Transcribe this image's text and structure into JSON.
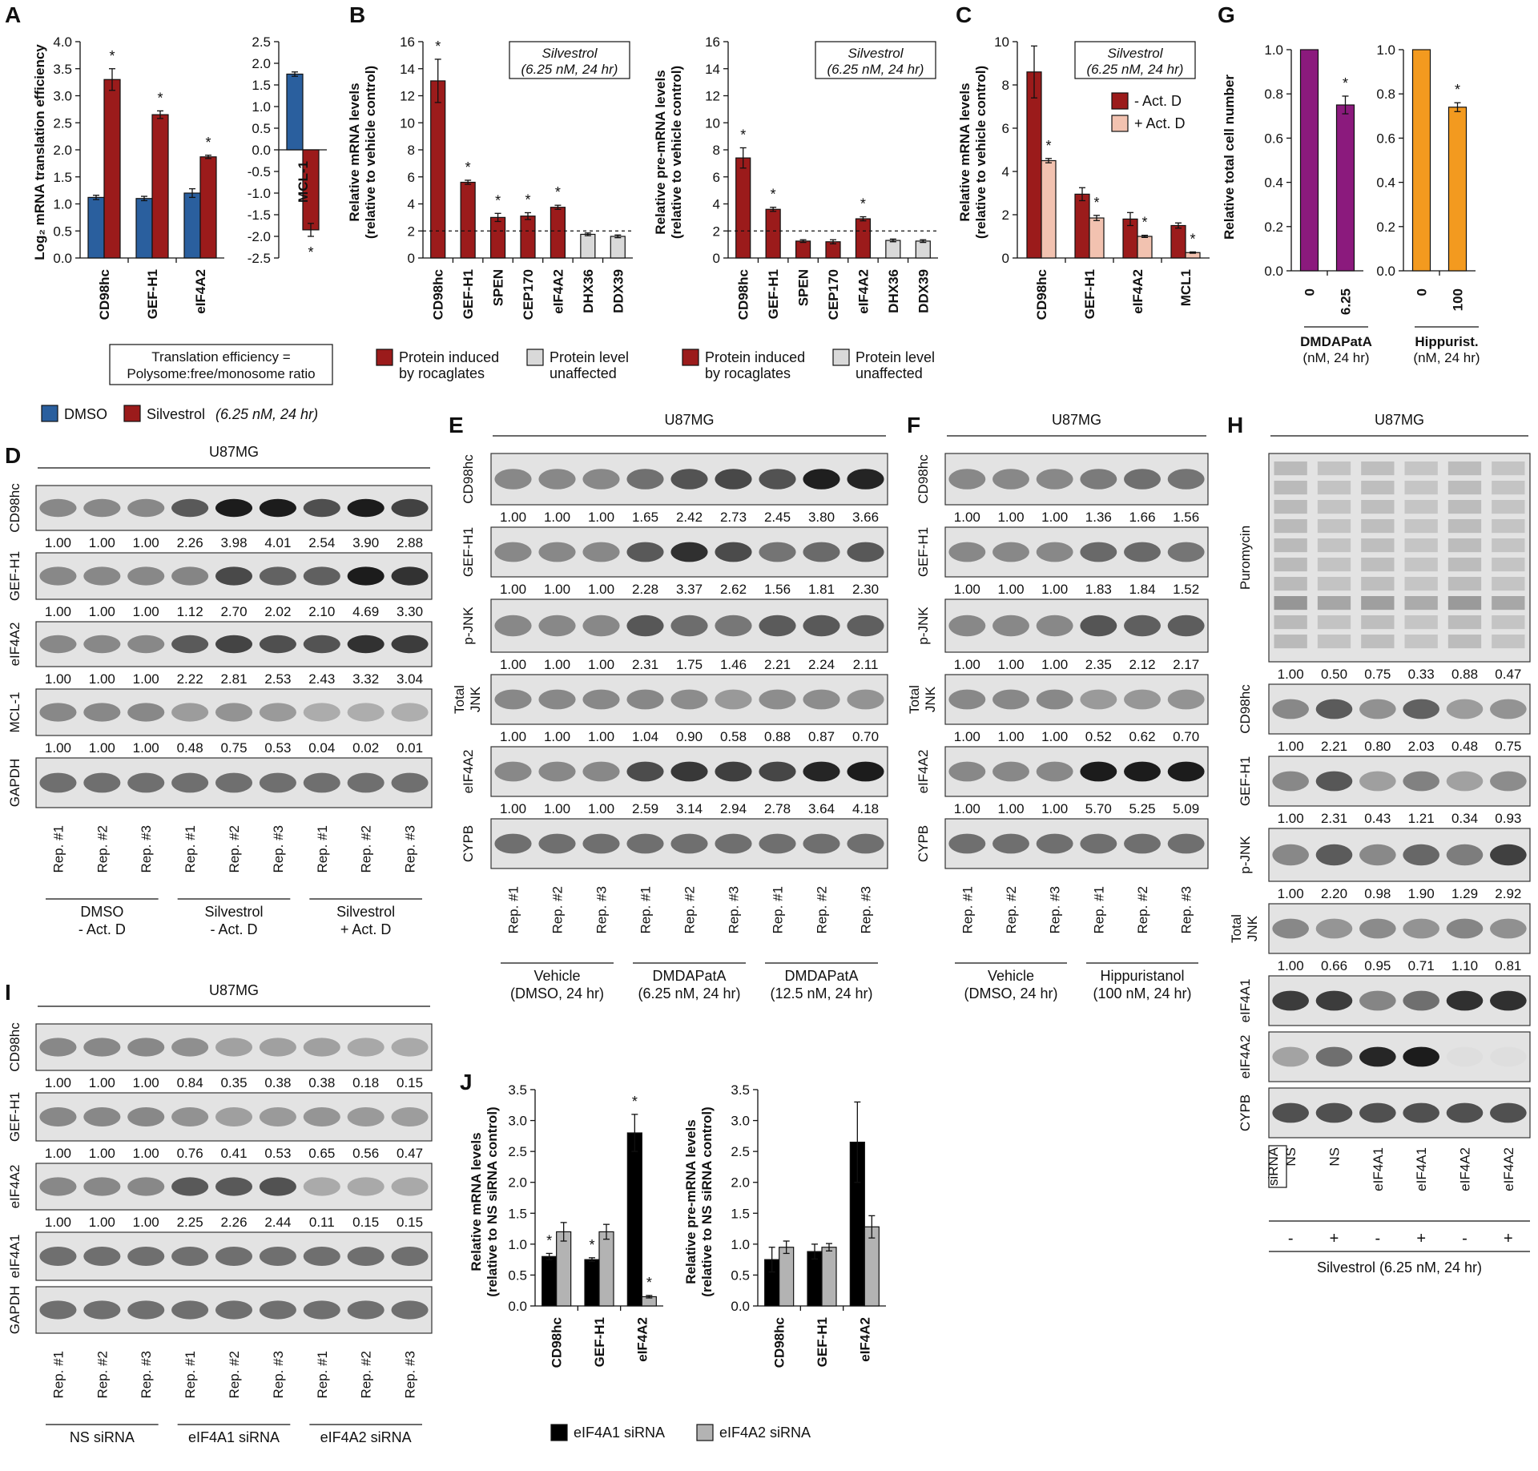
{
  "panels": {
    "A": "A",
    "B": "B",
    "C": "C",
    "D": "D",
    "E": "E",
    "F": "F",
    "G": "G",
    "H": "H",
    "I": "I",
    "J": "J"
  },
  "common": {
    "star": "*",
    "reps": [
      "Rep. #1",
      "Rep. #2",
      "Rep. #3",
      "Rep. #1",
      "Rep. #2",
      "Rep. #3",
      "Rep. #1",
      "Rep. #2",
      "Rep. #3"
    ],
    "cell_line": "U87MG",
    "silvestrol_box": [
      "Silvestrol",
      "(6.25 nM, 24 hr)"
    ],
    "legend_induced": [
      "Protein induced",
      "by rocaglates"
    ],
    "legend_unaffected": [
      "Protein level",
      "unaffected"
    ]
  },
  "legend_A": {
    "dmso": "DMSO",
    "silvestrol": "Silvestrol",
    "silvestrol_cond": "(6.25 nM, 24 hr)",
    "note": [
      "Translation efficiency =",
      "Polysome:free/monosome ratio"
    ]
  },
  "colors": {
    "dmso": "#2a5f9e",
    "silvestrol": "#9b1b1b",
    "minus_actd": "#9b1b1b",
    "plus_actd": "#f2c2b0",
    "unaffected": "#d9d9d9",
    "dmdapata": "#8b1a7d",
    "hippurist": "#f39a1f",
    "sirna1": "#000000",
    "sirna2": "#b3b3b3"
  },
  "chart_data": [
    {
      "panel": "A",
      "type": "bar",
      "ylabel": "Log₂ mRNA translation efficiency",
      "ylim": [
        0,
        4.0
      ],
      "yticks": [
        "0.0",
        "0.5",
        "1.0",
        "1.5",
        "2.0",
        "2.5",
        "3.0",
        "3.5",
        "4.0"
      ],
      "categories": [
        "CD98hc",
        "GEF-H1",
        "eIF4A2"
      ],
      "series": [
        {
          "name": "DMSO",
          "values": [
            1.12,
            1.1,
            1.2
          ]
        },
        {
          "name": "Silvestrol",
          "values": [
            3.3,
            2.65,
            1.87
          ]
        }
      ]
    },
    {
      "panel": "A",
      "type": "bar",
      "ylim": [
        -2.5,
        2.5
      ],
      "yticks": [
        "-2.5",
        "-2.0",
        "-1.5",
        "-1.0",
        "-0.5",
        "0.0",
        "0.5",
        "1.0",
        "1.5",
        "2.0",
        "2.5"
      ],
      "categories": [
        "MCL-1"
      ],
      "series": [
        {
          "name": "DMSO",
          "values": [
            1.75
          ]
        },
        {
          "name": "Silvestrol",
          "values": [
            -1.85
          ]
        }
      ]
    },
    {
      "panel": "B",
      "type": "bar",
      "ylabel": [
        "Relative mRNA levels",
        "(relative to vehicle control)"
      ],
      "ylim": [
        0,
        16
      ],
      "yticks": [
        "0",
        "2",
        "4",
        "6",
        "8",
        "10",
        "12",
        "14",
        "16"
      ],
      "categories": [
        "CD98hc",
        "GEF-H1",
        "SPEN",
        "CEP170",
        "eIF4A2",
        "DHX36",
        "DDX39"
      ],
      "values": [
        13.1,
        5.6,
        3.0,
        3.1,
        3.75,
        1.75,
        1.6
      ]
    },
    {
      "panel": "B",
      "type": "bar",
      "ylabel": [
        "Relative pre-mRNA levels",
        "(relative to vehicle control)"
      ],
      "ylim": [
        0,
        16
      ],
      "yticks": [
        "0",
        "2",
        "4",
        "6",
        "8",
        "10",
        "12",
        "14",
        "16"
      ],
      "categories": [
        "CD98hc",
        "GEF-H1",
        "SPEN",
        "CEP170",
        "eIF4A2",
        "DHX36",
        "DDX39"
      ],
      "values": [
        7.4,
        3.6,
        1.25,
        1.2,
        2.9,
        1.3,
        1.25
      ]
    },
    {
      "panel": "C",
      "type": "bar",
      "ylabel": [
        "Relative mRNA levels",
        "(relative to vehicle control)"
      ],
      "ylim": [
        0,
        10
      ],
      "yticks": [
        "0",
        "2",
        "4",
        "6",
        "8",
        "10"
      ],
      "categories": [
        "CD98hc",
        "GEF-H1",
        "eIF4A2",
        "MCL1"
      ],
      "series": [
        {
          "name": "- Act. D",
          "values": [
            8.6,
            2.95,
            1.8,
            1.5
          ]
        },
        {
          "name": "+ Act. D",
          "values": [
            4.5,
            1.85,
            1.0,
            0.25
          ]
        }
      ]
    },
    {
      "panel": "G",
      "type": "bar",
      "ylabel": "Relative total cell number",
      "ylim": [
        0,
        1.0
      ],
      "yticks": [
        "0.0",
        "0.2",
        "0.4",
        "0.6",
        "0.8",
        "1.0"
      ],
      "categories": [
        "0",
        "6.25"
      ],
      "values": [
        1.0,
        0.75
      ],
      "xlabel": [
        "DMDAPatA",
        "(nM, 24 hr)"
      ]
    },
    {
      "panel": "G",
      "type": "bar",
      "ylim": [
        0,
        1.0
      ],
      "yticks": [
        "0.0",
        "0.2",
        "0.4",
        "0.6",
        "0.8",
        "1.0"
      ],
      "categories": [
        "0",
        "100"
      ],
      "values": [
        1.0,
        0.74
      ],
      "xlabel": [
        "Hippurist.",
        "(nM, 24 hr)"
      ]
    },
    {
      "panel": "J",
      "type": "bar",
      "ylabel": [
        "Relative mRNA levels",
        "(relative to NS siRNA control)"
      ],
      "ylim": [
        0,
        3.5
      ],
      "yticks": [
        "0.0",
        "0.5",
        "1.0",
        "1.5",
        "2.0",
        "2.5",
        "3.0",
        "3.5"
      ],
      "categories": [
        "CD98hc",
        "GEF-H1",
        "eIF4A2"
      ],
      "series": [
        {
          "name": "eIF4A1 siRNA",
          "values": [
            0.8,
            0.75,
            2.8
          ]
        },
        {
          "name": "eIF4A2 siRNA",
          "values": [
            1.2,
            1.2,
            0.15
          ]
        }
      ]
    },
    {
      "panel": "J",
      "type": "bar",
      "ylabel": [
        "Relative pre-mRNA levels",
        "(relative to NS siRNA control)"
      ],
      "ylim": [
        0,
        3.5
      ],
      "yticks": [
        "0.0",
        "0.5",
        "1.0",
        "1.5",
        "2.0",
        "2.5",
        "3.0",
        "3.5"
      ],
      "categories": [
        "CD98hc",
        "GEF-H1",
        "eIF4A2"
      ],
      "series": [
        {
          "name": "eIF4A1 siRNA",
          "values": [
            0.75,
            0.88,
            2.65
          ]
        },
        {
          "name": "eIF4A2 siRNA",
          "values": [
            0.95,
            0.95,
            1.28
          ]
        }
      ]
    }
  ],
  "blots": {
    "D": {
      "rows": [
        {
          "label": "CD98hc",
          "values": [
            "1.00",
            "1.00",
            "1.00",
            "2.26",
            "3.98",
            "4.01",
            "2.54",
            "3.90",
            "2.88"
          ]
        },
        {
          "label": "GEF-H1",
          "values": [
            "1.00",
            "1.00",
            "1.00",
            "1.12",
            "2.70",
            "2.02",
            "2.10",
            "4.69",
            "3.30"
          ]
        },
        {
          "label": "eIF4A2",
          "values": [
            "1.00",
            "1.00",
            "1.00",
            "2.22",
            "2.81",
            "2.53",
            "2.43",
            "3.32",
            "3.04"
          ]
        },
        {
          "label": "MCL-1",
          "values": [
            "1.00",
            "1.00",
            "1.00",
            "0.48",
            "0.75",
            "0.53",
            "0.04",
            "0.02",
            "0.01"
          ]
        },
        {
          "label": "GAPDH",
          "values": []
        }
      ],
      "groups": [
        [
          "DMSO",
          "- Act. D"
        ],
        [
          "Silvestrol",
          "- Act. D"
        ],
        [
          "Silvestrol",
          "+ Act. D"
        ]
      ]
    },
    "E": {
      "rows": [
        {
          "label": "CD98hc",
          "values": [
            "1.00",
            "1.00",
            "1.00",
            "1.65",
            "2.42",
            "2.73",
            "2.45",
            "3.80",
            "3.66"
          ]
        },
        {
          "label": "GEF-H1",
          "values": [
            "1.00",
            "1.00",
            "1.00",
            "2.28",
            "3.37",
            "2.62",
            "1.56",
            "1.81",
            "2.30"
          ]
        },
        {
          "label": "p-JNK",
          "values": [
            "1.00",
            "1.00",
            "1.00",
            "2.31",
            "1.75",
            "1.46",
            "2.21",
            "2.24",
            "2.11"
          ]
        },
        {
          "label": "Total JNK",
          "values": [
            "1.00",
            "1.00",
            "1.00",
            "1.04",
            "0.90",
            "0.58",
            "0.88",
            "0.87",
            "0.70"
          ]
        },
        {
          "label": "eIF4A2",
          "values": [
            "1.00",
            "1.00",
            "1.00",
            "2.59",
            "3.14",
            "2.94",
            "2.78",
            "3.64",
            "4.18"
          ]
        },
        {
          "label": "CYPB",
          "values": []
        }
      ],
      "groups": [
        [
          "Vehicle",
          "(DMSO, 24 hr)"
        ],
        [
          "DMDAPatA",
          "(6.25 nM, 24 hr)"
        ],
        [
          "DMDAPatA",
          "(12.5 nM, 24 hr)"
        ]
      ]
    },
    "F": {
      "rows": [
        {
          "label": "CD98hc",
          "values": [
            "1.00",
            "1.00",
            "1.00",
            "1.36",
            "1.66",
            "1.56"
          ]
        },
        {
          "label": "GEF-H1",
          "values": [
            "1.00",
            "1.00",
            "1.00",
            "1.83",
            "1.84",
            "1.52"
          ]
        },
        {
          "label": "p-JNK",
          "values": [
            "1.00",
            "1.00",
            "1.00",
            "2.35",
            "2.12",
            "2.17"
          ]
        },
        {
          "label": "Total JNK",
          "values": [
            "1.00",
            "1.00",
            "1.00",
            "0.52",
            "0.62",
            "0.70"
          ]
        },
        {
          "label": "eIF4A2",
          "values": [
            "1.00",
            "1.00",
            "1.00",
            "5.70",
            "5.25",
            "5.09"
          ]
        },
        {
          "label": "CYPB",
          "values": []
        }
      ],
      "groups": [
        [
          "Vehicle",
          "(DMSO, 24 hr)"
        ],
        [
          "Hippuristanol",
          "(100 nM, 24 hr)"
        ]
      ]
    },
    "H": {
      "rows": [
        {
          "label": "Puromycin",
          "values": [
            "1.00",
            "0.50",
            "0.75",
            "0.33",
            "0.88",
            "0.47"
          ]
        },
        {
          "label": "CD98hc",
          "values": [
            "1.00",
            "2.21",
            "0.80",
            "2.03",
            "0.48",
            "0.75"
          ]
        },
        {
          "label": "GEF-H1",
          "values": [
            "1.00",
            "2.31",
            "0.43",
            "1.21",
            "0.34",
            "0.93"
          ]
        },
        {
          "label": "p-JNK",
          "values": [
            "1.00",
            "2.20",
            "0.98",
            "1.90",
            "1.29",
            "2.92"
          ]
        },
        {
          "label": "Total JNK",
          "values": [
            "1.00",
            "0.66",
            "0.95",
            "0.71",
            "1.10",
            "0.81"
          ]
        },
        {
          "label": "eIF4A1",
          "values": []
        },
        {
          "label": "eIF4A2",
          "values": []
        },
        {
          "label": "CYPB",
          "values": []
        }
      ],
      "sirna_label": "siRNA",
      "sirna": [
        "NS",
        "NS",
        "eIF4A1",
        "eIF4A1",
        "eIF4A2",
        "eIF4A2"
      ],
      "silv": [
        "-",
        "+",
        "-",
        "+",
        "-",
        "+"
      ],
      "silv_label": "Silvestrol (6.25 nM, 24 hr)"
    },
    "I": {
      "rows": [
        {
          "label": "CD98hc",
          "values": [
            "1.00",
            "1.00",
            "1.00",
            "0.84",
            "0.35",
            "0.38",
            "0.38",
            "0.18",
            "0.15"
          ]
        },
        {
          "label": "GEF-H1",
          "values": [
            "1.00",
            "1.00",
            "1.00",
            "0.76",
            "0.41",
            "0.53",
            "0.65",
            "0.56",
            "0.47"
          ]
        },
        {
          "label": "eIF4A2",
          "values": [
            "1.00",
            "1.00",
            "1.00",
            "2.25",
            "2.26",
            "2.44",
            "0.11",
            "0.15",
            "0.15"
          ]
        },
        {
          "label": "eIF4A1",
          "values": []
        },
        {
          "label": "GAPDH",
          "values": []
        }
      ],
      "groups": [
        [
          "NS siRNA"
        ],
        [
          "eIF4A1 siRNA"
        ],
        [
          "eIF4A2 siRNA"
        ]
      ]
    }
  },
  "legend_J": {
    "s1": "eIF4A1 siRNA",
    "s2": "eIF4A2 siRNA"
  },
  "legend_C": {
    "minus": "- Act. D",
    "plus": "+ Act. D"
  }
}
